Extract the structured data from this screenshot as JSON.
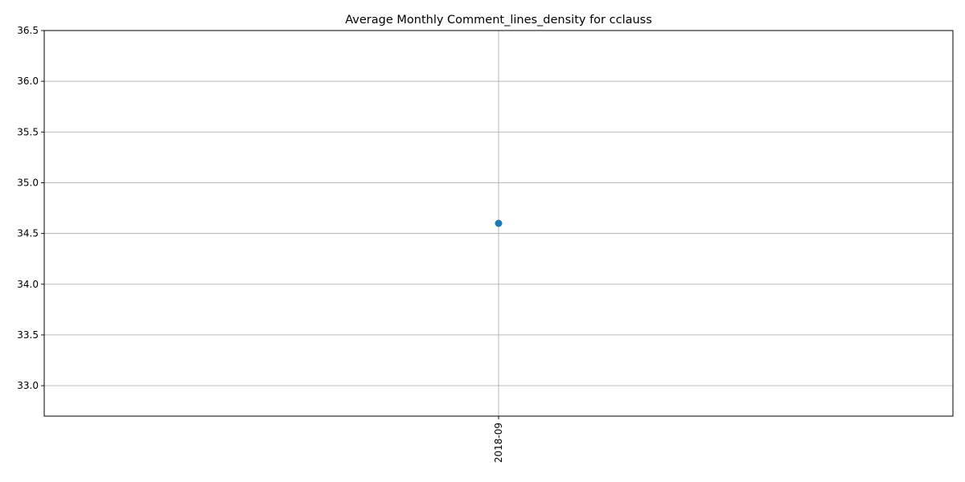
{
  "chart_data": {
    "type": "line",
    "title": "Average Monthly Comment_lines_density for cclauss",
    "xlabel": "",
    "ylabel": "",
    "categories": [
      "2018-09"
    ],
    "series": [
      {
        "values": [
          34.6
        ],
        "color": "#1f77b4",
        "marker": "circle"
      }
    ],
    "ylim": [
      32.7,
      36.5
    ],
    "yticks": [
      33.0,
      33.5,
      34.0,
      34.5,
      35.0,
      35.5,
      36.0,
      36.5
    ],
    "ytick_labels": [
      "33.0",
      "33.5",
      "34.0",
      "34.5",
      "35.0",
      "35.5",
      "36.0",
      "36.5"
    ],
    "xtick_rotation": "vertical",
    "grid": true,
    "legend": "none"
  }
}
